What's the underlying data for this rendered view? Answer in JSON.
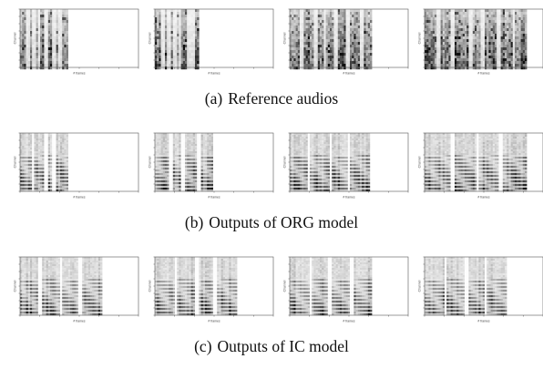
{
  "figure": {
    "rows": [
      {
        "label": "(a)",
        "caption": "Reference audios",
        "panels": [
          {
            "ylabel": "Channel",
            "xlabel": "# frames",
            "signal_end": 0.39,
            "pattern": "reference"
          },
          {
            "ylabel": "Channel",
            "xlabel": "# frames",
            "signal_end": 0.37,
            "pattern": "reference"
          },
          {
            "ylabel": "Channel",
            "xlabel": "# frames",
            "signal_end": 0.69,
            "pattern": "reference"
          },
          {
            "ylabel": "Channel",
            "xlabel": "# frames",
            "signal_end": 0.86,
            "pattern": "reference"
          }
        ]
      },
      {
        "label": "(b)",
        "caption": "Outputs of ORG model",
        "panels": [
          {
            "ylabel": "Channel",
            "xlabel": "# frames",
            "signal_end": 0.39,
            "pattern": "harmonic"
          },
          {
            "ylabel": "Channel",
            "xlabel": "# frames",
            "signal_end": 0.48,
            "pattern": "harmonic"
          },
          {
            "ylabel": "Channel",
            "xlabel": "# frames",
            "signal_end": 0.67,
            "pattern": "harmonic"
          },
          {
            "ylabel": "Channel",
            "xlabel": "# frames",
            "signal_end": 0.86,
            "pattern": "harmonic"
          }
        ]
      },
      {
        "label": "(c)",
        "caption": "Outputs of IC model",
        "panels": [
          {
            "ylabel": "Channel",
            "xlabel": "# frames",
            "signal_end": 0.68,
            "pattern": "harmonic"
          },
          {
            "ylabel": "Channel",
            "xlabel": "# frames",
            "signal_end": 0.68,
            "pattern": "harmonic"
          },
          {
            "ylabel": "Channel",
            "xlabel": "# frames",
            "signal_end": 0.68,
            "pattern": "harmonic"
          },
          {
            "ylabel": "Channel",
            "xlabel": "# frames",
            "signal_end": 0.68,
            "pattern": "harmonic"
          }
        ]
      }
    ]
  }
}
